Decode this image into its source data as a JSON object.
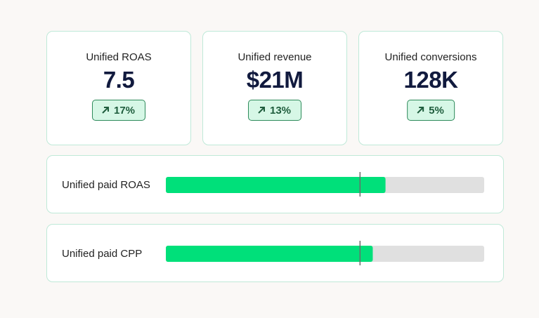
{
  "kpis": [
    {
      "label": "Unified ROAS",
      "value": "7.5",
      "change": "17%"
    },
    {
      "label": "Unified revenue",
      "value": "$21M",
      "change": "13%"
    },
    {
      "label": "Unified conversions",
      "value": "128K",
      "change": "5%"
    }
  ],
  "bullets": {
    "xlim": [
      0,
      100
    ],
    "fill_color": "#00e07a",
    "track_color": "#e0e0e0",
    "marker_color": "#6b6b6b",
    "rows": [
      {
        "label": "Unified paid ROAS",
        "value": 69,
        "target": 61
      },
      {
        "label": "Unified paid CPP",
        "value": 65,
        "target": 61
      }
    ]
  }
}
